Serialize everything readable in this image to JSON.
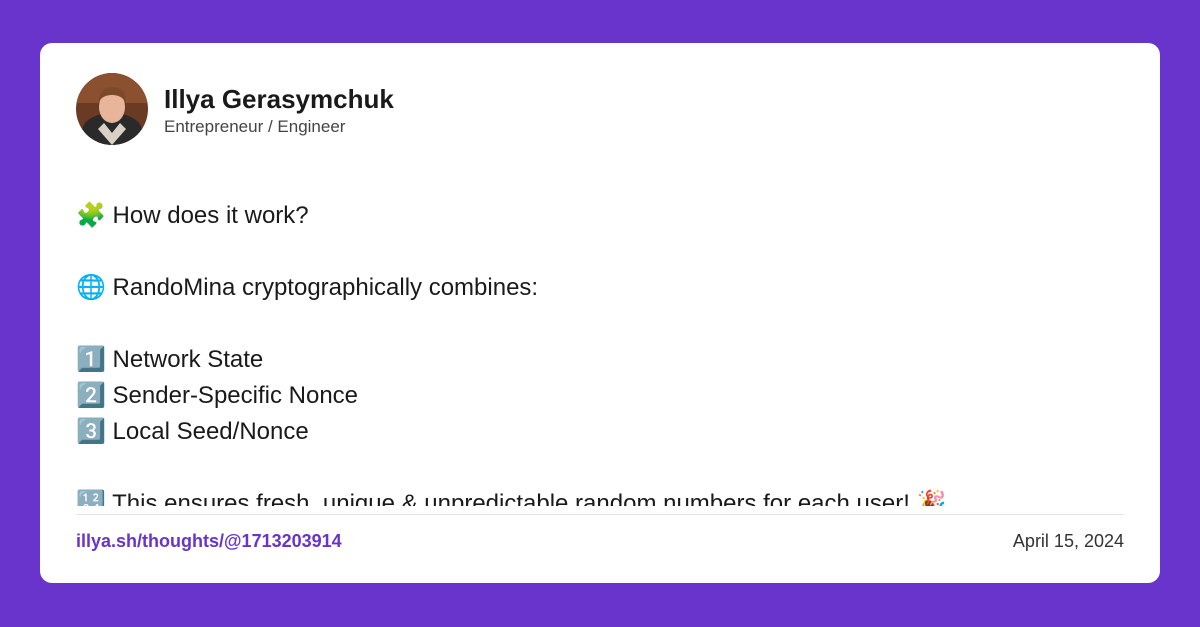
{
  "header": {
    "name": "Illya Gerasymchuk",
    "role": "Entrepreneur / Engineer"
  },
  "post": {
    "paragraphs": [
      [
        "🧩 How does it work?"
      ],
      [
        "🌐 RandoMina cryptographically combines:"
      ],
      [
        "1️⃣ Network State",
        "2️⃣ Sender-Specific Nonce",
        "3️⃣ Local Seed/Nonce"
      ],
      [
        "🔢 This ensures fresh, unique & unpredictable random numbers for each user! 🎉"
      ]
    ]
  },
  "footer": {
    "link": "illya.sh/thoughts/@1713203914",
    "date": "April 15, 2024"
  }
}
